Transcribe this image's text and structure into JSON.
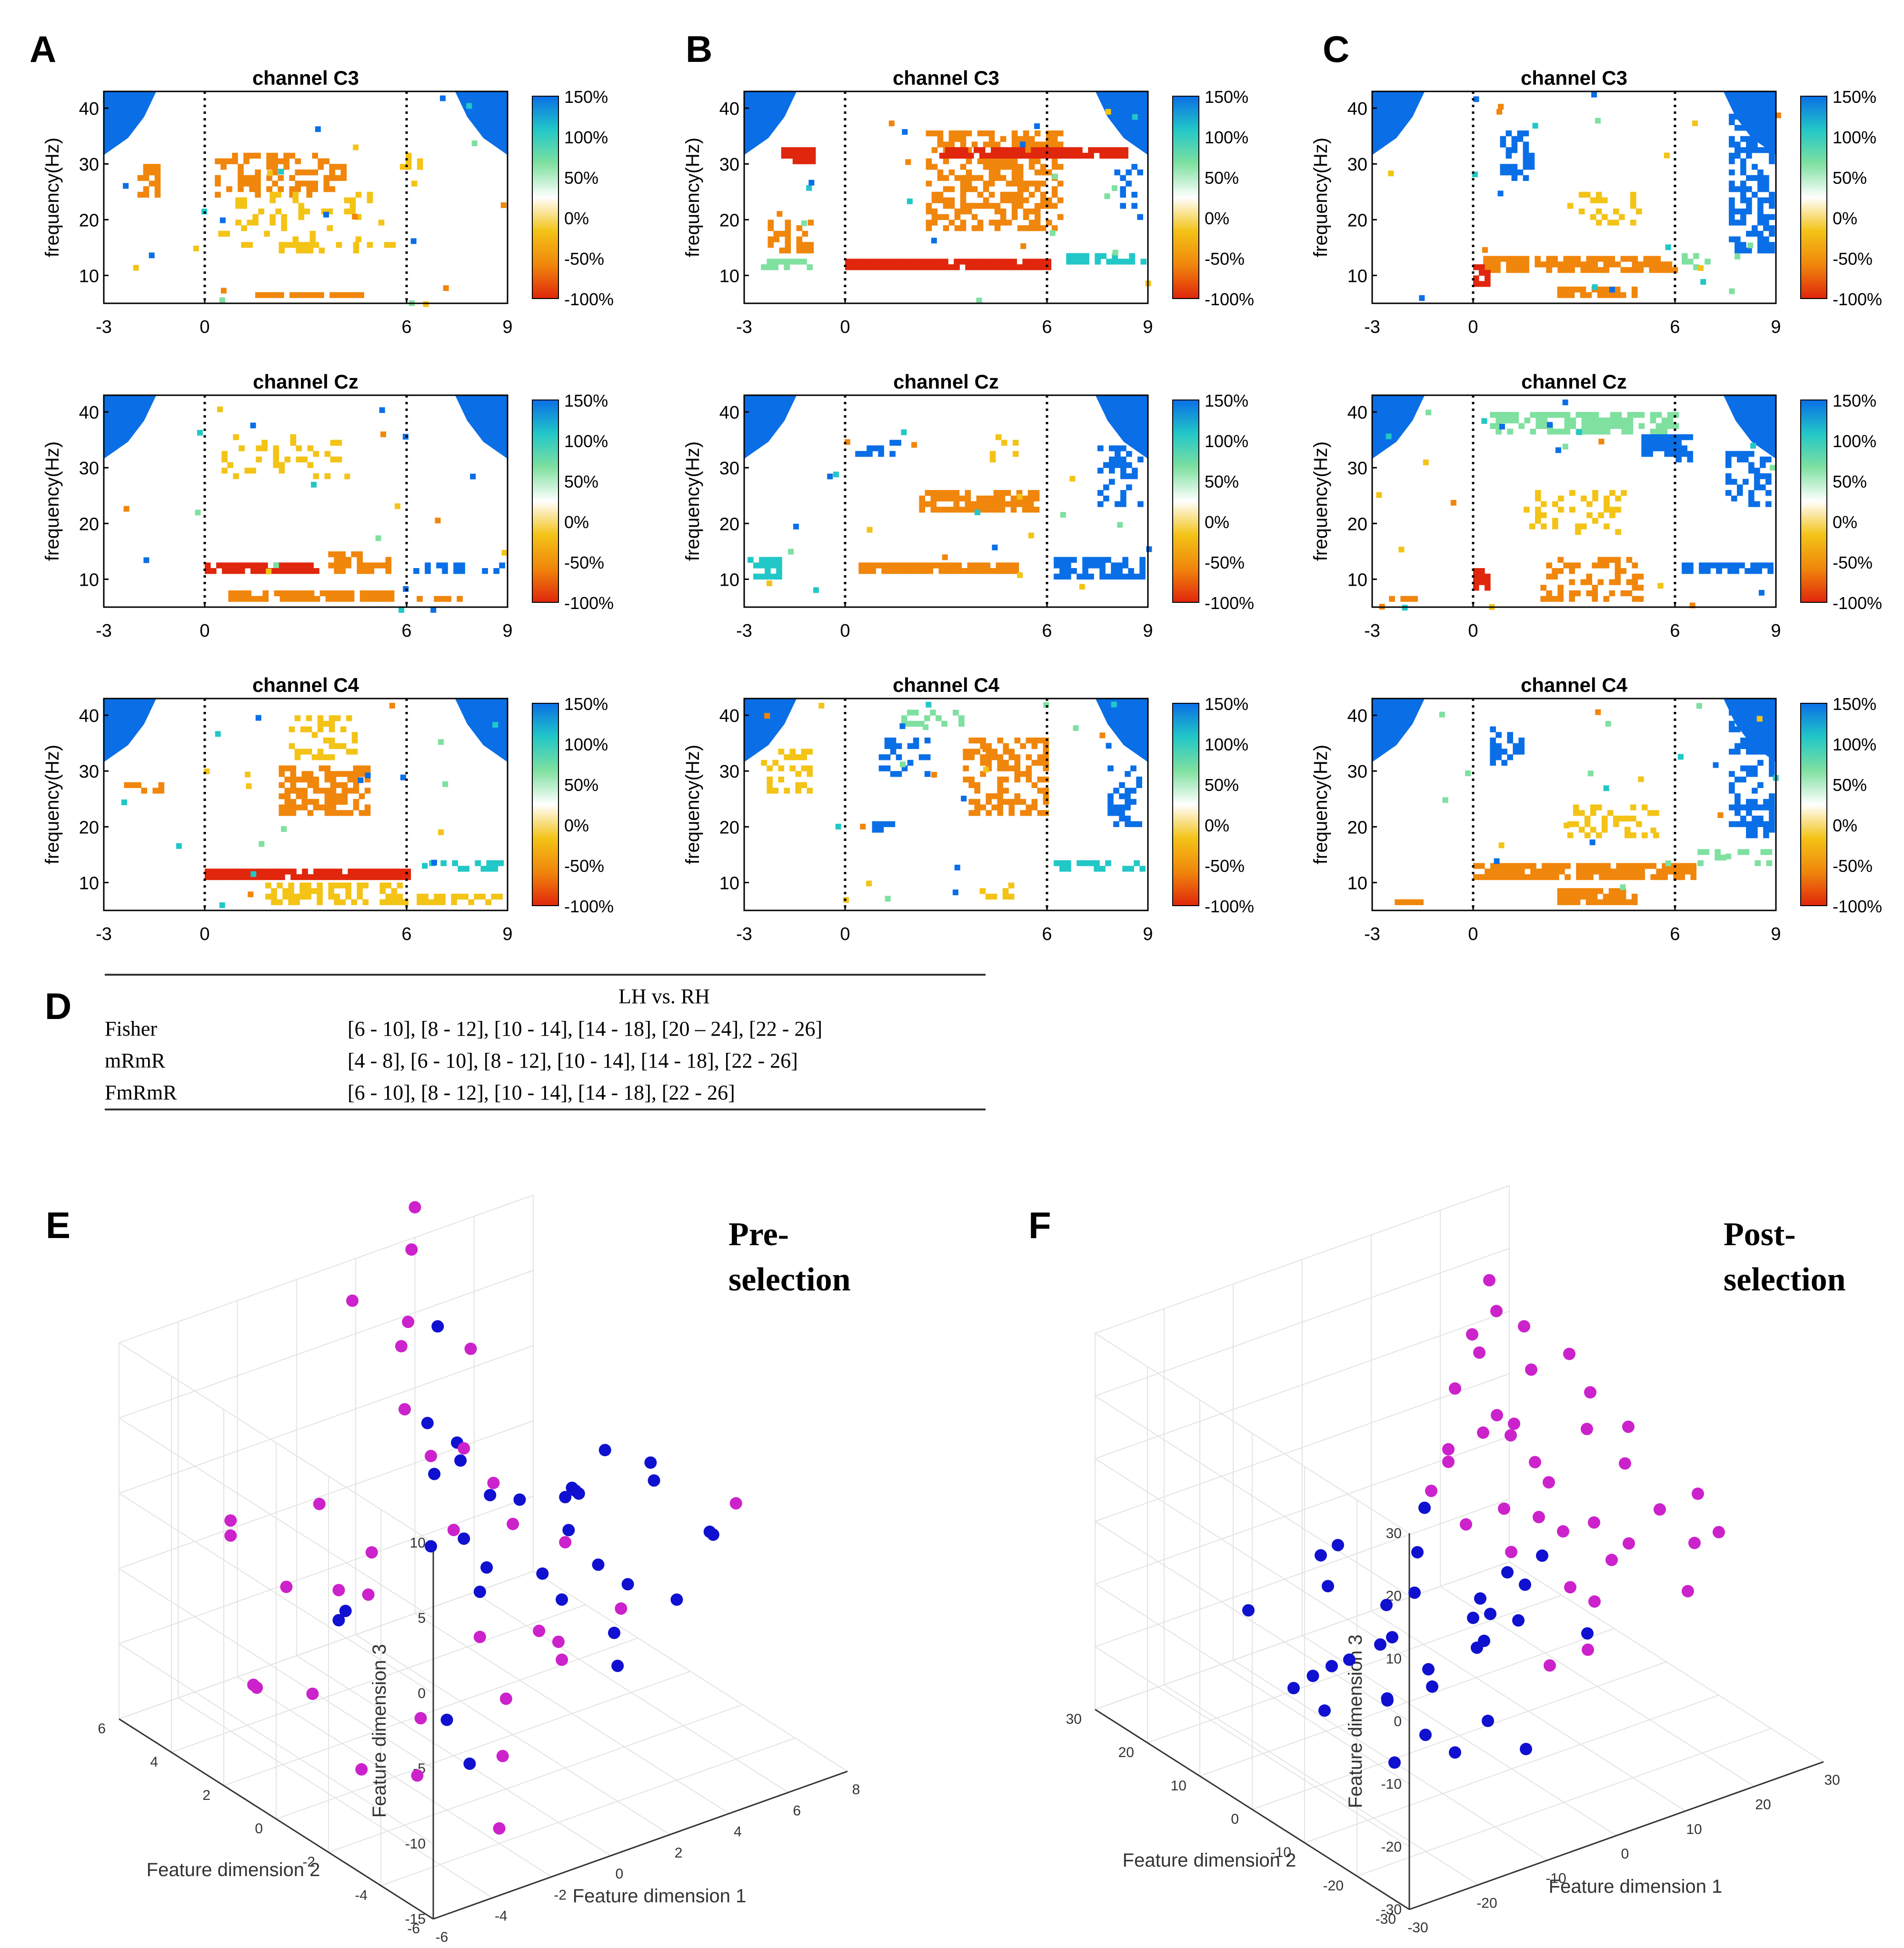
{
  "colors": {
    "blue": "#0a6fe6",
    "cyan": "#22c7c7",
    "green": "#7fe0a0",
    "yellow": "#f3c316",
    "orange": "#f0860c",
    "red": "#e0260c",
    "blue_dot": "#1010d0",
    "magenta_dot": "#cc22cc",
    "grid": "#e3e3e3"
  },
  "panels": [
    {
      "label": "A"
    },
    {
      "label": "B"
    },
    {
      "label": "C"
    }
  ],
  "channels": [
    "channel C3",
    "channel Cz",
    "channel C4"
  ],
  "heatmap_axes": {
    "ylabel": "frequency(Hz)",
    "xticks": [
      "-3",
      "0",
      "6",
      "9"
    ],
    "yticks": [
      "10",
      "20",
      "30",
      "40"
    ],
    "colorbar_ticks": [
      "150%",
      "100%",
      "50%",
      "0%",
      "-50%",
      "-100%"
    ]
  },
  "chart_data": [
    {
      "type": "heatmap",
      "title": "channel C3 / Cz / C4 (panels A, B, C)",
      "x_range": [
        -3,
        9
      ],
      "y_range": [
        5,
        43
      ],
      "task_onset": 0,
      "task_offset": 6,
      "color_range_percent": [
        -100,
        150
      ],
      "xlabel": "",
      "ylabel": "frequency(Hz)"
    },
    {
      "type": "table",
      "panel": "D",
      "header": "LH vs. RH",
      "rows": [
        {
          "method": "Fisher",
          "bands": "[6 - 10], [8 - 12], [10 - 14], [14 - 18], [20 – 24], [22 - 26]"
        },
        {
          "method": "mRmR",
          "bands": "[4 - 8], [6 - 10], [8 - 12], [10 - 14], [14 - 18], [22 - 26]"
        },
        {
          "method": "FmRmR",
          "bands": "[6 - 10], [8 - 12], [10 - 14], [14 - 18], [22 - 26]"
        }
      ]
    },
    {
      "type": "scatter",
      "panel": "E",
      "title": "Pre-selection",
      "title_lines": [
        "Pre-",
        "selection"
      ],
      "xlabel": "Feature dimension 1",
      "ylabel": "Feature dimension 2",
      "zlabel": "Feature dimension 3",
      "xticks": [
        "-6",
        "-4",
        "-2",
        "0",
        "2",
        "4",
        "6",
        "8"
      ],
      "yticks": [
        "-6",
        "-4",
        "-2",
        "0",
        "2",
        "4",
        "6"
      ],
      "zticks": [
        "-15",
        "-10",
        "-5",
        "0",
        "5",
        "10"
      ],
      "xlim": [
        -6,
        8
      ],
      "ylim": [
        -6,
        6
      ],
      "zlim": [
        -15,
        10
      ],
      "series": [
        {
          "name": "class 1 (blue)",
          "points": [
            [
              1,
              1,
              4
            ],
            [
              3,
              4,
              7
            ],
            [
              4,
              -3,
              5
            ],
            [
              2,
              2,
              1
            ],
            [
              3,
              -1,
              -1
            ],
            [
              4,
              0,
              0
            ],
            [
              5,
              -2,
              2
            ],
            [
              6,
              1,
              0
            ],
            [
              -3,
              1,
              -5
            ],
            [
              0,
              -1,
              -3
            ],
            [
              1,
              2,
              -4
            ],
            [
              2,
              -4,
              -6
            ],
            [
              -2,
              -2,
              -9
            ],
            [
              3,
              3,
              -6
            ],
            [
              5,
              1,
              -2
            ],
            [
              4,
              -1,
              -4
            ],
            [
              3,
              2,
              -2
            ],
            [
              2,
              -2,
              3
            ],
            [
              0,
              1,
              6
            ],
            [
              -1,
              3,
              -8
            ],
            [
              6,
              -3,
              -1
            ],
            [
              7,
              -2,
              -3
            ],
            [
              1,
              -3,
              -2
            ],
            [
              2,
              3,
              -1
            ],
            [
              -3,
              -4,
              -9
            ],
            [
              4,
              2,
              -3
            ],
            [
              5,
              -1,
              -6
            ],
            [
              3,
              0,
              -5
            ],
            [
              6,
              2,
              -4
            ],
            [
              2,
              1,
              -5
            ],
            [
              1,
              -5,
              -2
            ],
            [
              4,
              -4,
              -3
            ]
          ]
        },
        {
          "name": "class 2 (magenta)",
          "points": [
            [
              -4,
              4,
              -1
            ],
            [
              -4,
              4,
              -2
            ],
            [
              -3,
              3,
              -5
            ],
            [
              -5,
              2,
              -9
            ],
            [
              -4,
              3,
              -11
            ],
            [
              -3,
              2,
              -11
            ],
            [
              -2,
              -1,
              -10
            ],
            [
              -1,
              -3,
              -11
            ],
            [
              -1,
              2,
              -3
            ],
            [
              0,
              0,
              0
            ],
            [
              1,
              2,
              2
            ],
            [
              -2,
              1,
              -4
            ],
            [
              -1,
              4,
              -2
            ],
            [
              0,
              -1,
              -6
            ],
            [
              2,
              -2,
              0
            ],
            [
              3,
              -3,
              -4
            ],
            [
              4,
              3,
              -3
            ],
            [
              3,
              5,
              11
            ],
            [
              4,
              6,
              12
            ],
            [
              2,
              4,
              8
            ],
            [
              0,
              2,
              10
            ],
            [
              1,
              3,
              4
            ],
            [
              2,
              -1,
              -7
            ],
            [
              -3,
              -2,
              -12
            ],
            [
              -2,
              -4,
              -14
            ],
            [
              5,
              5,
              3
            ],
            [
              -4,
              -1,
              -12
            ],
            [
              0,
              -2,
              -9
            ],
            [
              1,
              5,
              9
            ],
            [
              -3,
              1,
              -3
            ],
            [
              6,
              -4,
              2
            ],
            [
              3,
              3,
              0
            ],
            [
              2,
              0,
              -1
            ],
            [
              0,
              -4,
              -3
            ],
            [
              1,
              -3,
              -6
            ]
          ]
        }
      ]
    },
    {
      "type": "scatter",
      "panel": "F",
      "title": "Post-selection",
      "title_lines": [
        "Post-",
        "selection"
      ],
      "xlabel": "Feature dimension 1",
      "ylabel": "Feature dimension 2",
      "zlabel": "Feature dimension 3",
      "xticks": [
        "-30",
        "-20",
        "-10",
        "0",
        "10",
        "20",
        "30"
      ],
      "yticks": [
        "-30",
        "-20",
        "-10",
        "0",
        "10",
        "20",
        "30"
      ],
      "zticks": [
        "-30",
        "-20",
        "-10",
        "0",
        "10",
        "20",
        "30"
      ],
      "xlim": [
        -30,
        30
      ],
      "ylim": [
        -30,
        30
      ],
      "zlim": [
        -30,
        30
      ],
      "series": [
        {
          "name": "class 1 (blue)",
          "points": [
            [
              -25,
              -5,
              -8
            ],
            [
              -22,
              -8,
              -5
            ],
            [
              -20,
              -2,
              -10
            ],
            [
              -24,
              0,
              -13
            ],
            [
              -18,
              -10,
              -12
            ],
            [
              -15,
              -6,
              -15
            ],
            [
              -16,
              4,
              -2
            ],
            [
              -12,
              -3,
              -8
            ],
            [
              -10,
              -8,
              -14
            ],
            [
              -14,
              -12,
              -18
            ],
            [
              -20,
              -14,
              -19
            ],
            [
              -18,
              2,
              -20
            ],
            [
              -12,
              -15,
              -20
            ],
            [
              -8,
              -2,
              -3
            ],
            [
              -6,
              6,
              -10
            ],
            [
              -4,
              -10,
              -8
            ],
            [
              -2,
              4,
              5
            ],
            [
              -10,
              10,
              -1
            ],
            [
              0,
              -4,
              -6
            ],
            [
              2,
              0,
              -12
            ],
            [
              4,
              -6,
              -10
            ],
            [
              -6,
              -2,
              -16
            ],
            [
              6,
              2,
              -14
            ],
            [
              -26,
              6,
              -3
            ],
            [
              -14,
              8,
              0
            ],
            [
              -8,
              -16,
              -16
            ],
            [
              0,
              8,
              -5
            ],
            [
              8,
              -2,
              -8
            ],
            [
              10,
              4,
              -10
            ],
            [
              -4,
              -18,
              -21
            ],
            [
              14,
              -6,
              -16
            ],
            [
              -2,
              -6,
              -12
            ],
            [
              -16,
              -6,
              -6
            ],
            [
              12,
              0,
              -6
            ]
          ]
        },
        {
          "name": "class 2 (magenta)",
          "points": [
            [
              2,
              8,
              4
            ],
            [
              6,
              10,
              8
            ],
            [
              10,
              6,
              14
            ],
            [
              12,
              12,
              20
            ],
            [
              14,
              4,
              6
            ],
            [
              16,
              14,
              24
            ],
            [
              18,
              10,
              16
            ],
            [
              20,
              2,
              10
            ],
            [
              22,
              8,
              18
            ],
            [
              24,
              0,
              4
            ],
            [
              26,
              -4,
              -2
            ],
            [
              28,
              -8,
              -6
            ],
            [
              30,
              -10,
              -4
            ],
            [
              24,
              -12,
              -10
            ],
            [
              20,
              -6,
              -4
            ],
            [
              18,
              -2,
              -2
            ],
            [
              16,
              4,
              2
            ],
            [
              14,
              8,
              10
            ],
            [
              12,
              -4,
              0
            ],
            [
              10,
              -8,
              -6
            ],
            [
              8,
              2,
              2
            ],
            [
              6,
              -2,
              -2
            ],
            [
              4,
              4,
              0
            ],
            [
              10,
              14,
              14
            ],
            [
              14,
              16,
              20
            ],
            [
              18,
              18,
              26
            ],
            [
              20,
              14,
              20
            ],
            [
              22,
              4,
              14
            ],
            [
              8,
              -14,
              -12
            ],
            [
              12,
              -10,
              -8
            ],
            [
              16,
              -8,
              -4
            ],
            [
              6,
              10,
              6
            ],
            [
              4,
              -12,
              -14
            ],
            [
              26,
              2,
              8
            ],
            [
              30,
              -6,
              0
            ],
            [
              12,
              6,
              10
            ],
            [
              10,
              -2,
              2
            ],
            [
              8,
              6,
              12
            ]
          ]
        }
      ]
    }
  ]
}
